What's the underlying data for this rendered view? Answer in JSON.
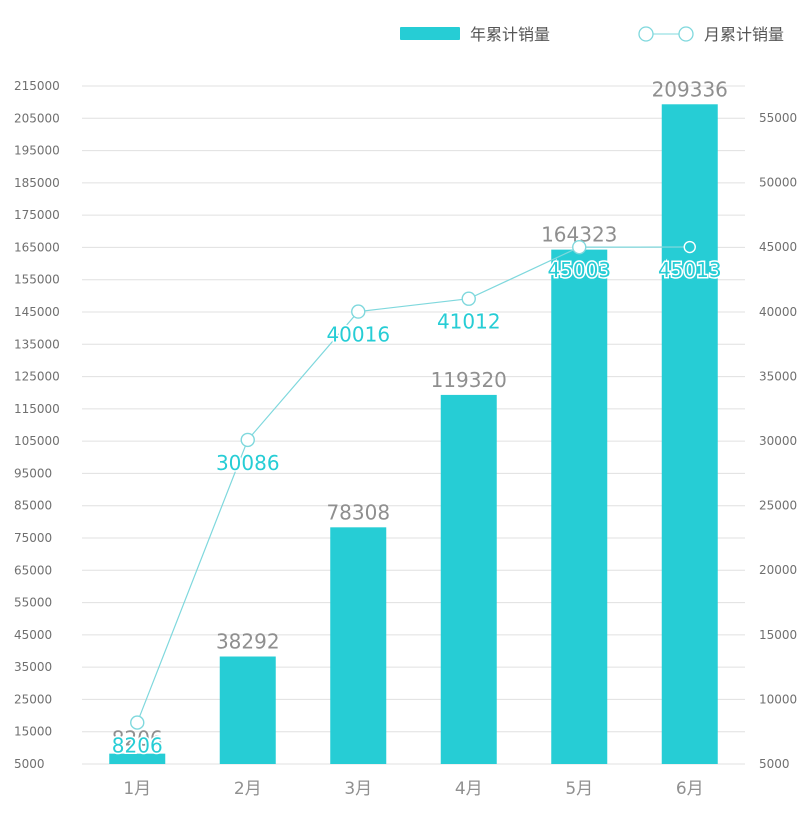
{
  "chart_data": {
    "type": "bar",
    "categories": [
      "1月",
      "2月",
      "3月",
      "4月",
      "5月",
      "6月"
    ],
    "series": [
      {
        "name": "年累计销量",
        "type": "bar",
        "axis": "left",
        "color": "#26cdd5",
        "values": [
          8206,
          38292,
          78308,
          119320,
          164323,
          209336
        ]
      },
      {
        "name": "月累计销量",
        "type": "line",
        "axis": "right",
        "color": "#26cdd5",
        "values": [
          8206,
          30086,
          40016,
          41012,
          45003,
          45013
        ]
      }
    ],
    "y_left": {
      "min": 5000,
      "max": 215000,
      "step": 10000
    },
    "y_right": {
      "min": 5000,
      "max": 55000,
      "step": 5000
    },
    "grid": true,
    "legend_position": "top-right",
    "colors": {
      "grid": "#e0e0e0",
      "line": "#7fd8dd",
      "bar_label": "#8f8f8f"
    }
  }
}
